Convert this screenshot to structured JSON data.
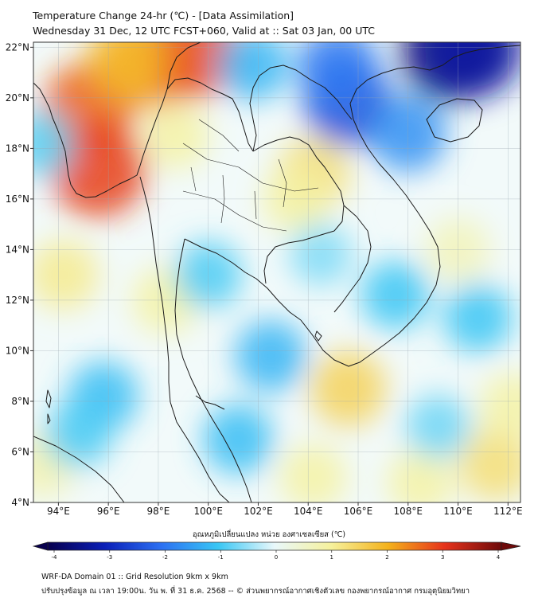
{
  "title": {
    "line1": "Temperature Change 24-hr (℃) - [Data Assimilation]",
    "line2": "Wednesday 31 Dec, 12 UTC FCST+060, Valid at :: Sat 03 Jan, 00 UTC"
  },
  "map": {
    "lon_range": [
      93,
      112.5
    ],
    "lat_range": [
      4,
      22.2
    ],
    "lon_ticks": [
      {
        "value": 94,
        "label": "94°E"
      },
      {
        "value": 96,
        "label": "96°E"
      },
      {
        "value": 98,
        "label": "98°E"
      },
      {
        "value": 100,
        "label": "100°E"
      },
      {
        "value": 102,
        "label": "102°E"
      },
      {
        "value": 104,
        "label": "104°E"
      },
      {
        "value": 106,
        "label": "106°E"
      },
      {
        "value": 108,
        "label": "108°E"
      },
      {
        "value": 110,
        "label": "110°E"
      },
      {
        "value": 112,
        "label": "112°E"
      }
    ],
    "lat_ticks": [
      {
        "value": 22,
        "label": "22°N"
      },
      {
        "value": 20,
        "label": "20°N"
      },
      {
        "value": 18,
        "label": "18°N"
      },
      {
        "value": 16,
        "label": "16°N"
      },
      {
        "value": 14,
        "label": "14°N"
      },
      {
        "value": 12,
        "label": "12°N"
      },
      {
        "value": 10,
        "label": "10°N"
      },
      {
        "value": 8,
        "label": "8°N"
      },
      {
        "value": 6,
        "label": "6°N"
      },
      {
        "value": 4,
        "label": "4°N"
      }
    ],
    "anomalies": [
      {
        "lon": 95.2,
        "lat": 19.6,
        "value": 2.6
      },
      {
        "lon": 95.6,
        "lat": 17.2,
        "value": 2.9
      },
      {
        "lon": 97.6,
        "lat": 21.2,
        "value": 2.3
      },
      {
        "lon": 99.3,
        "lat": 21.8,
        "value": 2.8
      },
      {
        "lon": 96.8,
        "lat": 21.6,
        "value": 1.9
      },
      {
        "lon": 98.7,
        "lat": 18.5,
        "value": 0.9
      },
      {
        "lon": 104.2,
        "lat": 17.0,
        "value": 1.3
      },
      {
        "lon": 103.5,
        "lat": 16.0,
        "value": 0.9
      },
      {
        "lon": 94.2,
        "lat": 13.0,
        "value": 1.1
      },
      {
        "lon": 98.3,
        "lat": 12.0,
        "value": 0.9
      },
      {
        "lon": 105.6,
        "lat": 8.5,
        "value": 1.5
      },
      {
        "lon": 104.2,
        "lat": 5.0,
        "value": 0.9
      },
      {
        "lon": 108.5,
        "lat": 4.8,
        "value": 0.9
      },
      {
        "lon": 111.5,
        "lat": 5.5,
        "value": 1.3
      },
      {
        "lon": 112.2,
        "lat": 7.8,
        "value": 0.9
      },
      {
        "lon": 110.0,
        "lat": 14.0,
        "value": 0.7
      },
      {
        "lon": 93.4,
        "lat": 5.5,
        "value": 0.8
      },
      {
        "lon": 105.6,
        "lat": 19.8,
        "value": -2.4
      },
      {
        "lon": 105.2,
        "lat": 21.2,
        "value": -1.9
      },
      {
        "lon": 109.8,
        "lat": 21.9,
        "value": -3.6
      },
      {
        "lon": 110.6,
        "lat": 22.0,
        "value": -3.2
      },
      {
        "lon": 108.0,
        "lat": 18.6,
        "value": -1.6
      },
      {
        "lon": 101.8,
        "lat": 21.3,
        "value": -1.2
      },
      {
        "lon": 93.3,
        "lat": 18.2,
        "value": -0.8
      },
      {
        "lon": 100.0,
        "lat": 13.0,
        "value": -0.9
      },
      {
        "lon": 102.5,
        "lat": 9.8,
        "value": -1.2
      },
      {
        "lon": 101.2,
        "lat": 6.5,
        "value": -1.1
      },
      {
        "lon": 95.8,
        "lat": 8.2,
        "value": -1.1
      },
      {
        "lon": 94.8,
        "lat": 6.7,
        "value": -0.9
      },
      {
        "lon": 107.5,
        "lat": 12.2,
        "value": -1.0
      },
      {
        "lon": 110.8,
        "lat": 11.3,
        "value": -1.0
      },
      {
        "lon": 109.2,
        "lat": 7.0,
        "value": -0.7
      },
      {
        "lon": 104.5,
        "lat": 13.8,
        "value": -0.6
      }
    ]
  },
  "colorbar": {
    "title": "อุณหภูมิเปลี่ยนแปลง หน่วย องศาเซลเซียส (℃)",
    "min": -4,
    "max": 4,
    "tick_labels": [
      "-4",
      "-3",
      "-2",
      "-1",
      "0",
      "1",
      "2",
      "3",
      "4"
    ],
    "colors": [
      "#08004e",
      "#0b1fb7",
      "#2c70f2",
      "#38c6f4",
      "#e9f8fb",
      "#f6f19c",
      "#f4b21c",
      "#e6321b",
      "#6e0a0a"
    ]
  },
  "footer": {
    "line1": "WRF-DA Domain 01 :: Grid Resolution 9km x 9km",
    "line2": "ปรับปรุงข้อมูล ณ เวลา 19:00น. วัน พ. ที่ 31 ธ.ค. 2568 -- © ส่วนพยากรณ์อากาศเชิงตัวเลข กองพยากรณ์อากาศ กรมอุตุนิยมวิทยา"
  }
}
